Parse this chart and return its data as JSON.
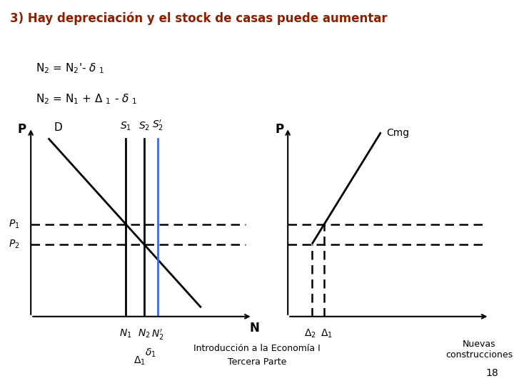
{
  "title": "3) Hay depreciación y el stock de casas puede aumentar",
  "title_color": "#8B2000",
  "bg_color": "#ffffff",
  "footer_line1": "Introducción a la Economía I",
  "footer_line2": "Tercera Parte",
  "page_number": "18",
  "fig_width": 7.2,
  "fig_height": 5.4,
  "dpi": 100
}
